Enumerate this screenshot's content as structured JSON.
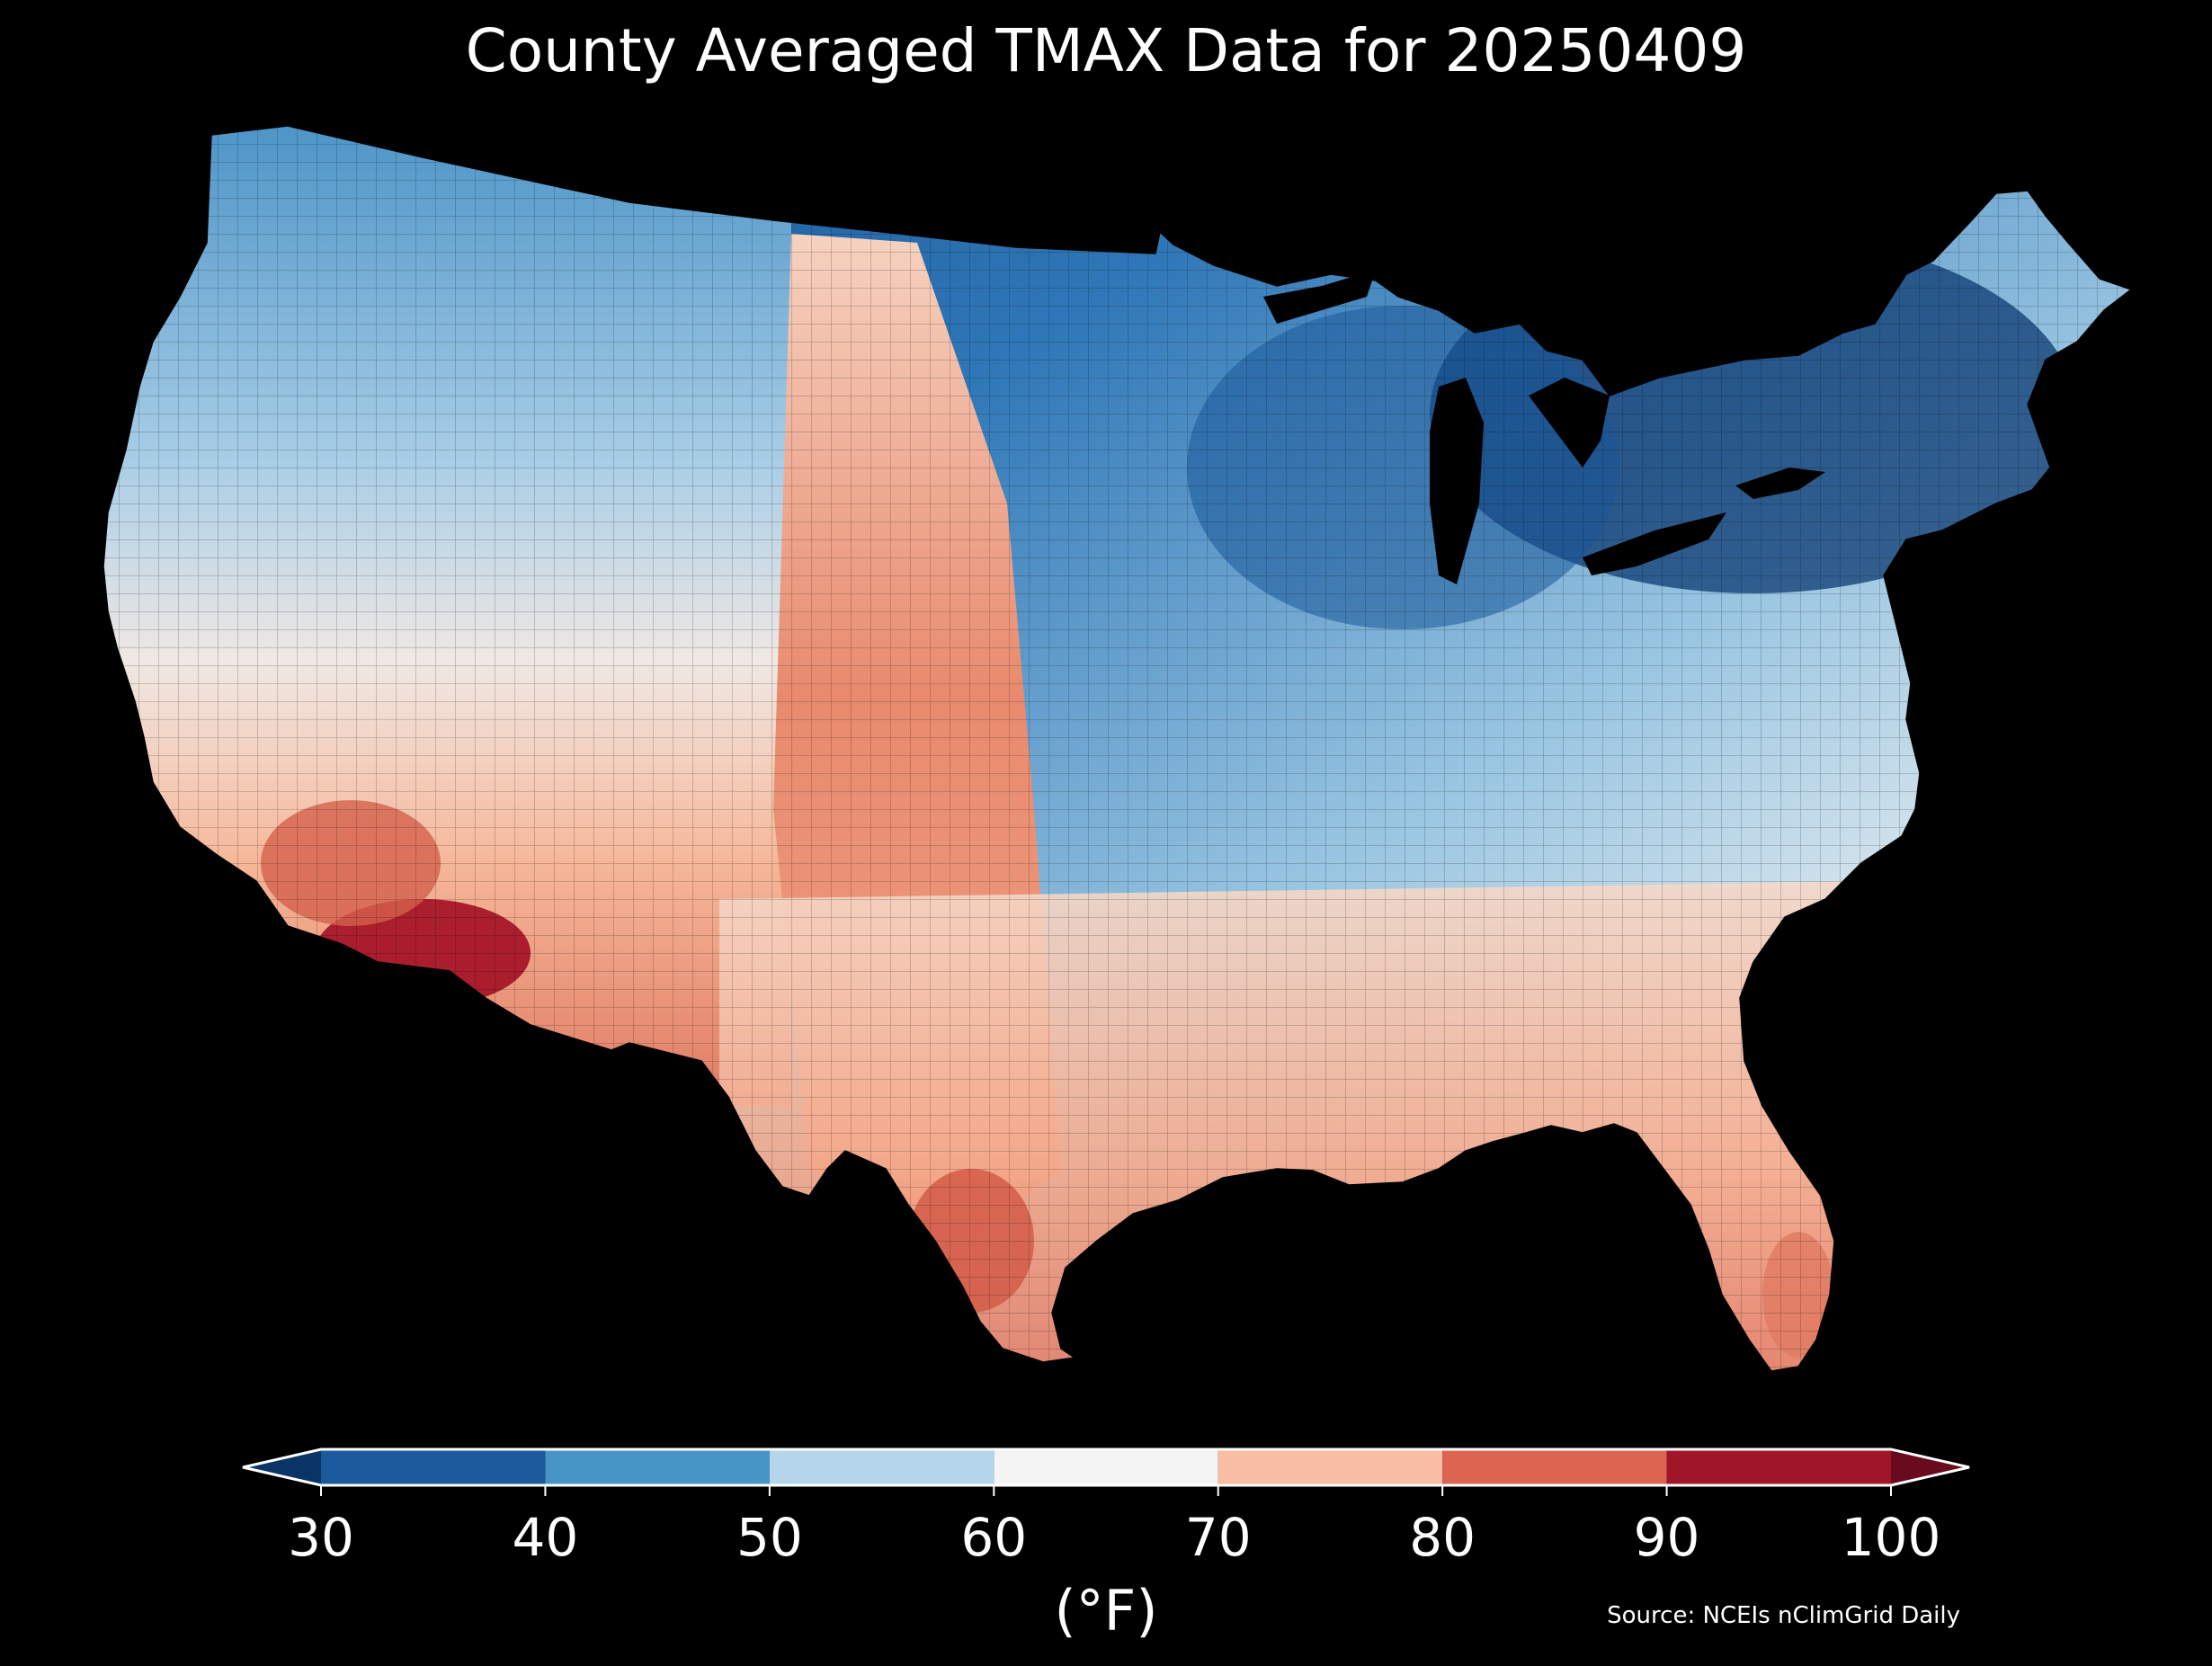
{
  "title": "County Averaged TMAX Data for 20250409",
  "colorbar": {
    "unit_label": "(°F)",
    "ticks": [
      "30",
      "40",
      "50",
      "60",
      "70",
      "80",
      "90",
      "100"
    ],
    "bins": [
      {
        "from": 30,
        "to": 40,
        "color": "#1c5a9d"
      },
      {
        "from": 40,
        "to": 50,
        "color": "#4795c6"
      },
      {
        "from": 50,
        "to": 60,
        "color": "#b5d5ea"
      },
      {
        "from": 60,
        "to": 70,
        "color": "#f4f4f4"
      },
      {
        "from": 70,
        "to": 80,
        "color": "#f8bea3"
      },
      {
        "from": 80,
        "to": 90,
        "color": "#db6550"
      },
      {
        "from": 90,
        "to": 100,
        "color": "#a01628"
      }
    ],
    "under_color": "#0a3466",
    "over_color": "#6a0a1f",
    "extend": "both"
  },
  "source": "Source: NCEIs nClimGrid Daily",
  "map": {
    "region": "Contiguous United States",
    "level": "county",
    "background": "#000000"
  }
}
